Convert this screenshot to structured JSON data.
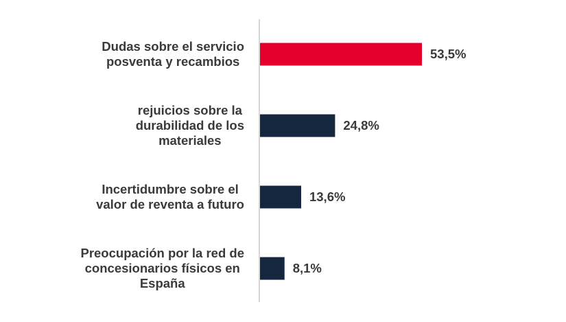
{
  "chart_data": {
    "type": "bar",
    "orientation": "horizontal",
    "categories": [
      [
        "Dudas sobre el servicio",
        "posventa y recambios"
      ],
      [
        "rejuicios sobre la",
        "durabilidad de los",
        "materiales"
      ],
      [
        "Incertidumbre sobre el",
        "valor de reventa a futuro"
      ],
      [
        "Preocupación por la red de",
        "concesionarios físicos  en",
        "España"
      ]
    ],
    "values": [
      53.5,
      24.8,
      13.6,
      8.1
    ],
    "value_labels": [
      "53,5%",
      "24,8%",
      "13,6%",
      "8,1%"
    ],
    "bar_colors": [
      "#e4002b",
      "#15263f",
      "#15263f",
      "#15263f"
    ],
    "xlim": [
      0,
      53.5
    ],
    "grid": false,
    "legend": "none"
  }
}
